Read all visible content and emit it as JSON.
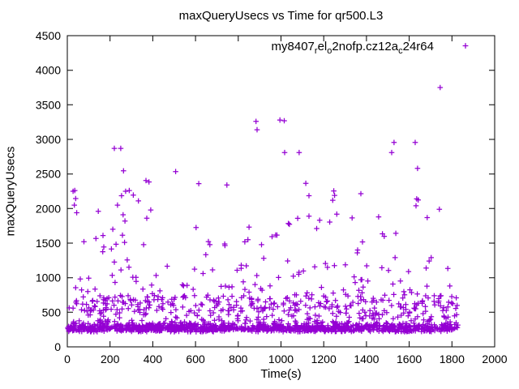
{
  "window": {
    "background": "#ffffff",
    "text_color": "#000000"
  },
  "chart_data": {
    "type": "scatter",
    "title": "maxQueryUsecs vs Time for qr500.L3",
    "xlabel": "Time(s)",
    "ylabel": "maxQueryUsecs",
    "xlim": [
      0,
      2000
    ],
    "ylim": [
      0,
      4500
    ],
    "xticks": [
      0,
      200,
      400,
      600,
      800,
      1000,
      1200,
      1400,
      1600,
      1800,
      2000
    ],
    "yticks": [
      0,
      500,
      1000,
      1500,
      2000,
      2500,
      3000,
      3500,
      4000,
      4500
    ],
    "grid": false,
    "legend_position": "top-right-inside",
    "series": [
      {
        "name": "my8407_rel_o2nofp.cz12a_c24r64",
        "name_display_segments": [
          {
            "text": "my8407",
            "sub": false
          },
          {
            "text": "r",
            "sub": true
          },
          {
            "text": "el",
            "sub": false
          },
          {
            "text": "o",
            "sub": true
          },
          {
            "text": "2nofp.cz12a",
            "sub": false
          },
          {
            "text": "c",
            "sub": true
          },
          {
            "text": "24r64",
            "sub": false
          }
        ],
        "marker": "plus",
        "color": "#9400D3",
        "data_x_extent_seconds": [
          0,
          1830
        ],
        "dense_band_summary": "heaviest band 220-345 usecs across full time range; secondary dense layer 520-735; sparser scatter up to ~3300; single max near 3750",
        "outlier_points": [
          [
            27,
            2250
          ],
          [
            33,
            2050
          ],
          [
            35,
            2260
          ],
          [
            39,
            2145
          ],
          [
            44,
            1940
          ],
          [
            145,
            1960
          ],
          [
            167,
            1610
          ],
          [
            213,
            1700
          ],
          [
            220,
            2870
          ],
          [
            250,
            2870
          ],
          [
            235,
            2050
          ],
          [
            254,
            2185
          ],
          [
            258,
            1615
          ],
          [
            261,
            1910
          ],
          [
            270,
            1820
          ],
          [
            273,
            2250
          ],
          [
            290,
            2260
          ],
          [
            309,
            2195
          ],
          [
            333,
            2110
          ],
          [
            263,
            2545
          ],
          [
            368,
            2405
          ],
          [
            372,
            1860
          ],
          [
            382,
            2385
          ],
          [
            507,
            2535
          ],
          [
            615,
            2360
          ],
          [
            747,
            2340
          ],
          [
            883,
            3260
          ],
          [
            888,
            3140
          ],
          [
            995,
            3280
          ],
          [
            1015,
            3270
          ],
          [
            1017,
            2810
          ],
          [
            1085,
            2810
          ],
          [
            1116,
            2365
          ],
          [
            1131,
            2185
          ],
          [
            1131,
            1890
          ],
          [
            1181,
            1830
          ],
          [
            1228,
            1805
          ],
          [
            1242,
            2120
          ],
          [
            1247,
            2255
          ],
          [
            1251,
            2190
          ],
          [
            1261,
            1920
          ],
          [
            1333,
            1865
          ],
          [
            1374,
            2215
          ],
          [
            1457,
            1880
          ],
          [
            1518,
            2810
          ],
          [
            1529,
            2955
          ],
          [
            1628,
            2955
          ],
          [
            1632,
            2040
          ],
          [
            1635,
            2140
          ],
          [
            1642,
            2125
          ],
          [
            1639,
            2580
          ],
          [
            1741,
            1990
          ],
          [
            1745,
            3750
          ]
        ],
        "background_bands": [
          {
            "count": 520,
            "xmin": 2,
            "xmax": 1828,
            "vmin": 218,
            "vmax": 345,
            "skew": 1.2
          },
          {
            "count": 520,
            "xmin": 2,
            "xmax": 1828,
            "vmin": 240,
            "vmax": 310,
            "skew": 1.0
          },
          {
            "count": 150,
            "xmin": 2,
            "xmax": 1828,
            "vmin": 345,
            "vmax": 520,
            "skew": 1.2
          },
          {
            "count": 240,
            "xmin": 2,
            "xmax": 1828,
            "vmin": 520,
            "vmax": 735,
            "skew": 1.1
          },
          {
            "count": 85,
            "xmin": 2,
            "xmax": 1828,
            "vmin": 735,
            "vmax": 1130,
            "skew": 1.5
          },
          {
            "count": 46,
            "xmin": 2,
            "xmax": 1828,
            "vmin": 1130,
            "vmax": 1650,
            "skew": 1.3
          },
          {
            "count": 8,
            "xmin": 2,
            "xmax": 1828,
            "vmin": 1650,
            "vmax": 1980,
            "skew": 1.0
          }
        ],
        "seed": 1337
      }
    ]
  }
}
